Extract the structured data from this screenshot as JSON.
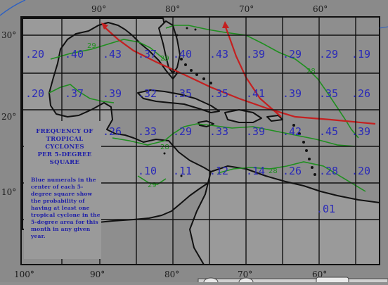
{
  "map": {
    "lon_labels_top": [
      "90°",
      "80°",
      "70°",
      "60°"
    ],
    "lon_labels_bottom": [
      "100°",
      "90°",
      "80°",
      "70°",
      "60°"
    ],
    "lat_labels": [
      "30°",
      "20°",
      "10°"
    ],
    "probabilities": [
      [
        ".20",
        ".40",
        ".43",
        ".37",
        ".40",
        ".43",
        ".39",
        ".29",
        ".29",
        ".19"
      ],
      [
        ".20",
        ".37",
        ".39",
        ".32",
        ".35",
        ".35",
        ".41",
        ".39",
        ".35",
        ".26"
      ],
      [
        "",
        "",
        ".26",
        ".33",
        ".29",
        ".33",
        ".39",
        ".42",
        ".45",
        ".39"
      ],
      [
        "",
        "",
        "",
        ".10",
        ".11",
        ".12",
        ".14",
        ".26",
        ".28",
        ".20"
      ],
      [
        "",
        "",
        "",
        "",
        "",
        "",
        "",
        "",
        ".01",
        ""
      ]
    ],
    "isoline_labels": [
      "29",
      "29",
      "28",
      "28",
      "29",
      "28"
    ],
    "legend": {
      "title_lines": [
        "FREQUENCY OF",
        "TROPICAL",
        "CYCLONES",
        "PER 5-DEGREE",
        "SQUARE"
      ],
      "description_lines": [
        "Blue numerals in the",
        "center of each 5-",
        "degree square show",
        "the probability of",
        "having at least one",
        "tropical cyclone in the",
        "5-degree area for this",
        "month in any given",
        "year."
      ]
    },
    "colors": {
      "background": "#8f8f8f",
      "land": "#999999",
      "numerals": "#2a2ab8",
      "isolines": "#1f8f1f",
      "tracks": "#c42020",
      "grid": "#111111"
    }
  }
}
